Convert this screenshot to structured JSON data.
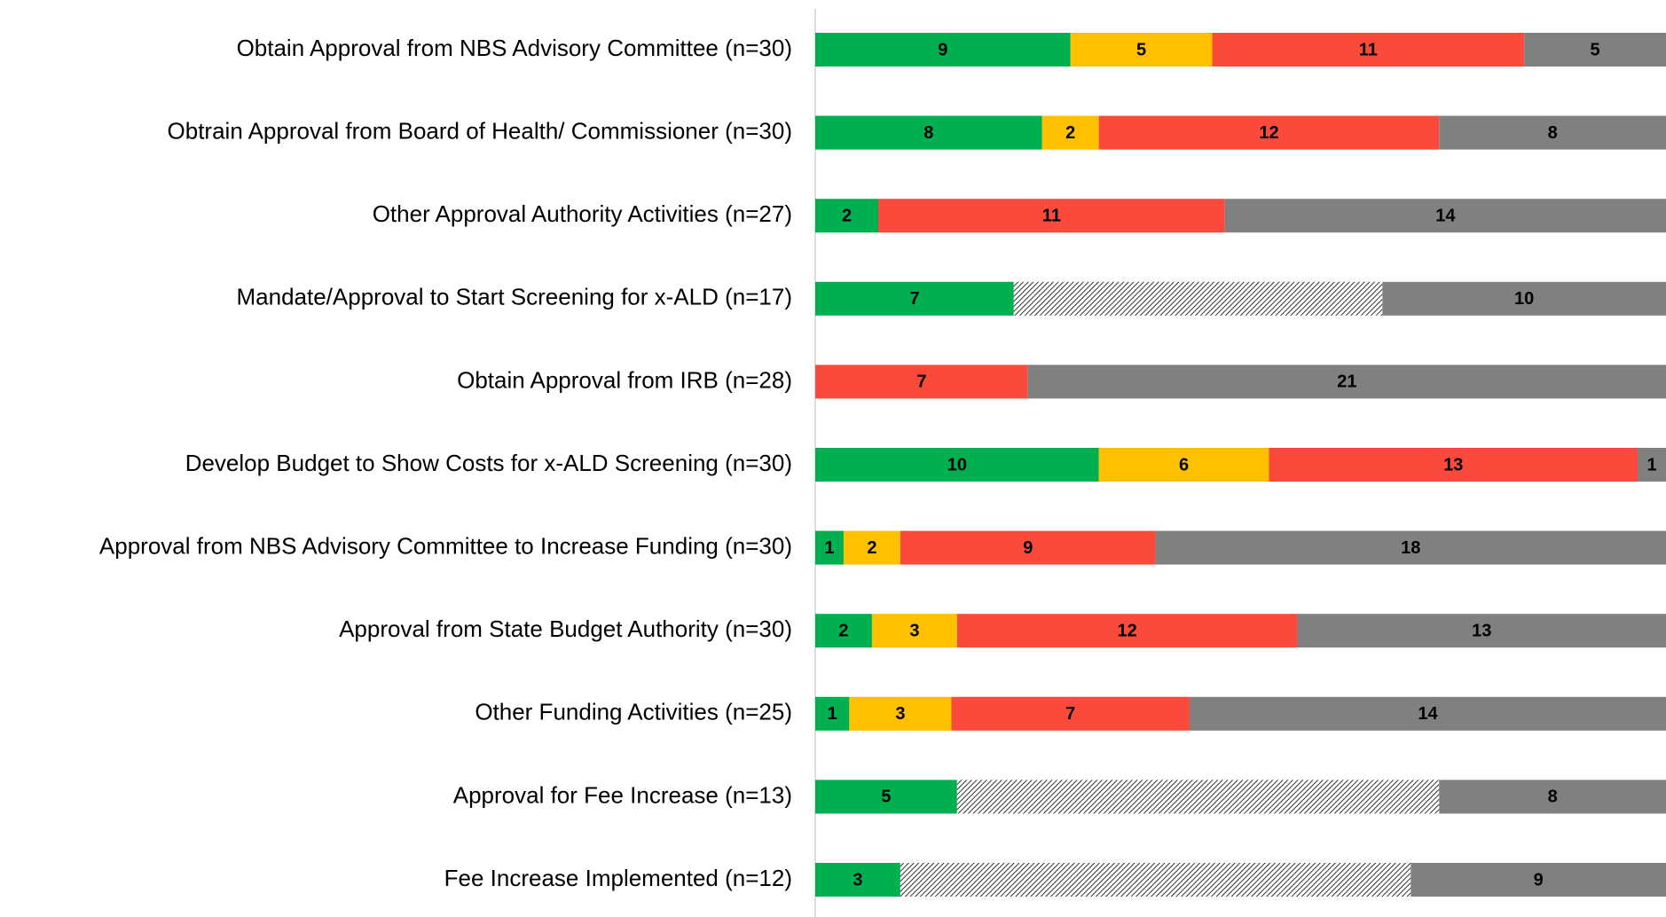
{
  "chart_data": {
    "type": "stacked-bar-horizontal",
    "stack": "percent",
    "categories": [
      "Obtain Approval from  NBS Advisory Committee (n=30)",
      "Obtrain Approval from Board of Health/ Commissioner (n=30)",
      "Other Approval Authority Activities (n=27)",
      "Mandate/Approval to Start Screening for x-ALD (n=17)",
      "Obtain Approval from IRB (n=28)",
      "Develop Budget to Show Costs for x-ALD Screening (n=30)",
      "Approval from NBS Advisory Committee to Increase Funding (n=30)",
      "Approval from State Budget Authority (n=30)",
      "Other Funding Activities (n=25)",
      "Approval for Fee Increase (n=13)",
      "Fee Increase Implemented (n=12)"
    ],
    "series": [
      {
        "color": "#00b050",
        "values": [
          9,
          8,
          2,
          7,
          null,
          10,
          1,
          2,
          1,
          5,
          3
        ]
      },
      {
        "color": "#ffc000",
        "values": [
          5,
          2,
          null,
          null,
          null,
          6,
          2,
          3,
          3,
          null,
          null
        ]
      },
      {
        "color": "#fa4a3c",
        "values": [
          11,
          12,
          11,
          null,
          7,
          13,
          9,
          12,
          7,
          null,
          null
        ]
      },
      {
        "color": "#ffffff",
        "pattern": "hatch",
        "labels": false,
        "values": [
          null,
          null,
          null,
          13,
          null,
          null,
          null,
          null,
          null,
          17,
          18
        ]
      },
      {
        "color": "#808080",
        "values": [
          5,
          8,
          14,
          10,
          21,
          1,
          18,
          13,
          14,
          8,
          9
        ]
      }
    ]
  }
}
